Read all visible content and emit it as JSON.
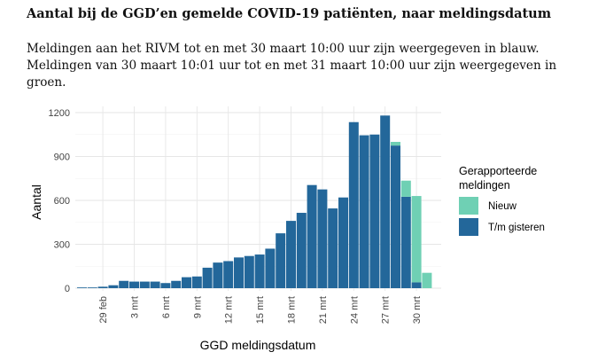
{
  "header": {
    "title": "Aantal bij de GGD’en gemelde COVID-19 patiënten, naar meldingsdatum",
    "line1": "Meldingen aan het RIVM tot en met 30 maart 10:00 uur zijn weergegeven in blauw.",
    "line2": "Meldingen van 30 maart 10:01 uur tot en met 31 maart 10:00 uur zijn weergegeven in groen."
  },
  "chart_data": {
    "type": "bar",
    "stacked": true,
    "xlabel": "GGD meldingsdatum",
    "ylabel": "Aantal",
    "ylim": [
      0,
      1260
    ],
    "yticks": [
      0,
      300,
      600,
      900,
      1200
    ],
    "categories": [
      "27 feb",
      "28 feb",
      "29 feb",
      "1 mrt",
      "2 mrt",
      "3 mrt",
      "4 mrt",
      "5 mrt",
      "6 mrt",
      "7 mrt",
      "8 mrt",
      "9 mrt",
      "10 mrt",
      "11 mrt",
      "12 mrt",
      "13 mrt",
      "14 mrt",
      "15 mrt",
      "16 mrt",
      "17 mrt",
      "18 mrt",
      "19 mrt",
      "20 mrt",
      "21 mrt",
      "22 mrt",
      "23 mrt",
      "24 mrt",
      "25 mrt",
      "26 mrt",
      "27 mrt",
      "28 mrt",
      "29 mrt",
      "30 mrt",
      "31 mrt"
    ],
    "xtick_labels": [
      {
        "index": 2,
        "label": "29 feb"
      },
      {
        "index": 5,
        "label": "3 mrt"
      },
      {
        "index": 8,
        "label": "6 mrt"
      },
      {
        "index": 11,
        "label": "9 mrt"
      },
      {
        "index": 14,
        "label": "12 mrt"
      },
      {
        "index": 17,
        "label": "15 mrt"
      },
      {
        "index": 20,
        "label": "18 mrt"
      },
      {
        "index": 23,
        "label": "21 mrt"
      },
      {
        "index": 26,
        "label": "24 mrt"
      },
      {
        "index": 29,
        "label": "27 mrt"
      },
      {
        "index": 32,
        "label": "30 mrt"
      }
    ],
    "series": [
      {
        "name": "T/m gisteren",
        "color": "#23679a",
        "values": [
          5,
          5,
          10,
          20,
          50,
          45,
          45,
          45,
          35,
          50,
          75,
          80,
          140,
          175,
          185,
          210,
          220,
          230,
          270,
          375,
          460,
          515,
          705,
          675,
          545,
          620,
          1135,
          1045,
          1050,
          1180,
          975,
          625,
          40,
          0
        ]
      },
      {
        "name": "Nieuw",
        "color": "#6fd0b4",
        "values": [
          0,
          0,
          0,
          0,
          0,
          0,
          0,
          0,
          0,
          0,
          0,
          0,
          0,
          0,
          0,
          0,
          0,
          0,
          0,
          0,
          0,
          0,
          0,
          0,
          0,
          0,
          0,
          0,
          0,
          0,
          25,
          110,
          590,
          105
        ]
      }
    ],
    "legend": {
      "title_line1": "Gerapporteerde",
      "title_line2": "meldingen",
      "placement": "right",
      "items": [
        {
          "label": "Nieuw",
          "color": "#6fd0b4"
        },
        {
          "label": "T/m gisteren",
          "color": "#23679a"
        }
      ]
    },
    "grid": true
  }
}
